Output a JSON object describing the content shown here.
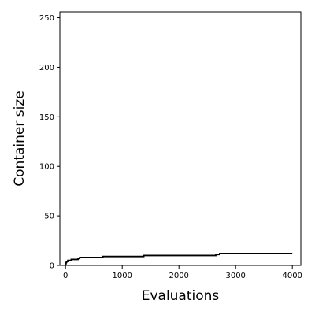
{
  "chart_data": {
    "type": "line",
    "title": "",
    "xlabel": "Evaluations",
    "ylabel": "Container size",
    "xlim": [
      -100,
      4150
    ],
    "ylim": [
      0,
      256
    ],
    "x_ticks": [
      0,
      1000,
      2000,
      3000,
      4000
    ],
    "x_tick_labels": [
      "0",
      "1000",
      "2000",
      "3000",
      "4000"
    ],
    "y_ticks": [
      0,
      50,
      100,
      150,
      200,
      250
    ],
    "y_tick_labels": [
      "0",
      "50",
      "100",
      "150",
      "200",
      "250"
    ],
    "grid": false,
    "legend": "none",
    "series": [
      {
        "color": "#000000",
        "step": true,
        "x": [
          0,
          5,
          10,
          20,
          40,
          60,
          100,
          160,
          220,
          250,
          330,
          660,
          1380,
          2000,
          2020,
          2650,
          2720,
          4000
        ],
        "y": [
          1,
          2,
          3,
          4,
          5,
          5,
          6,
          6,
          7,
          8,
          8,
          9,
          10,
          10,
          10,
          11,
          12,
          12
        ]
      }
    ]
  }
}
